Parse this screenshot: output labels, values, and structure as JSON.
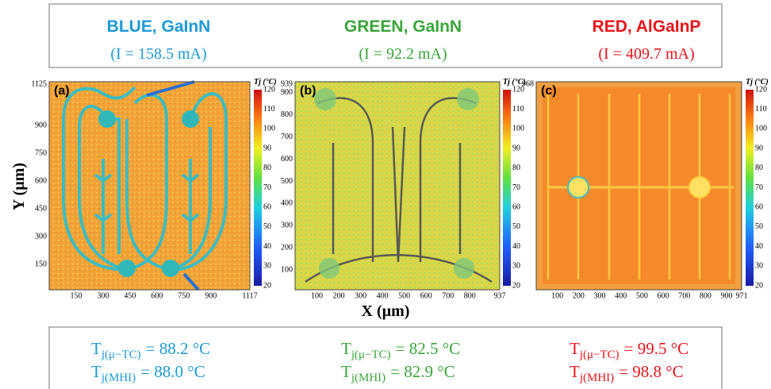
{
  "header": {
    "panels": [
      {
        "title": "BLUE, GaInN",
        "current": "(I = 158.5 mA)"
      },
      {
        "title": "GREEN, GaInN",
        "current": "(I = 92.2 mA)"
      },
      {
        "title": "RED, AlGaInP",
        "current": "(I = 409.7 mA)"
      }
    ]
  },
  "figure": {
    "y_label": "Y (µm)",
    "x_label": "X (µm)",
    "maps": [
      {
        "label": "(a)",
        "xticks": [
          150,
          300,
          450,
          600,
          750,
          900,
          1117
        ],
        "yticks": [
          1125,
          900,
          750,
          600,
          450,
          300,
          150
        ],
        "colorbar_title": "Tj (°C)",
        "colorbar_ticks": [
          120,
          110,
          100,
          90,
          80,
          70,
          60,
          50,
          40,
          30,
          20
        ]
      },
      {
        "label": "(b)",
        "xticks": [
          100,
          200,
          300,
          400,
          500,
          600,
          700,
          800,
          937
        ],
        "yticks": [
          939,
          900,
          800,
          700,
          600,
          500,
          400,
          300,
          200,
          100
        ],
        "colorbar_title": "Tj (°C)",
        "colorbar_ticks": [
          120,
          110,
          100,
          90,
          80,
          70,
          60,
          50,
          40,
          30,
          20
        ]
      },
      {
        "label": "(c)",
        "xticks": [
          100,
          200,
          300,
          400,
          500,
          600,
          700,
          800,
          900,
          971
        ],
        "yticks": [
          968
        ],
        "colorbar_title": "Tj (°C)",
        "colorbar_ticks": [
          120,
          110,
          100,
          90,
          80,
          70,
          60,
          50,
          40,
          30,
          20
        ]
      }
    ]
  },
  "footer": {
    "panels": [
      {
        "lines": [
          {
            "symbol": "T",
            "subscript": "j(μ−TC)",
            "text": "= 88.2 °C"
          },
          {
            "symbol": "T",
            "subscript": "j(MHI)",
            "text": "= 88.0 °C"
          }
        ]
      },
      {
        "lines": [
          {
            "symbol": "T",
            "subscript": "j(μ−TC)",
            "text": "= 82.5 °C"
          },
          {
            "symbol": "T",
            "subscript": "j(MHI)",
            "text": "= 82.9 °C"
          }
        ]
      },
      {
        "lines": [
          {
            "symbol": "T",
            "subscript": "j(μ−TC)",
            "text": "= 99.5 °C"
          },
          {
            "symbol": "T",
            "subscript": "j(MHI)",
            "text": "= 98.8 °C"
          }
        ]
      }
    ]
  }
}
